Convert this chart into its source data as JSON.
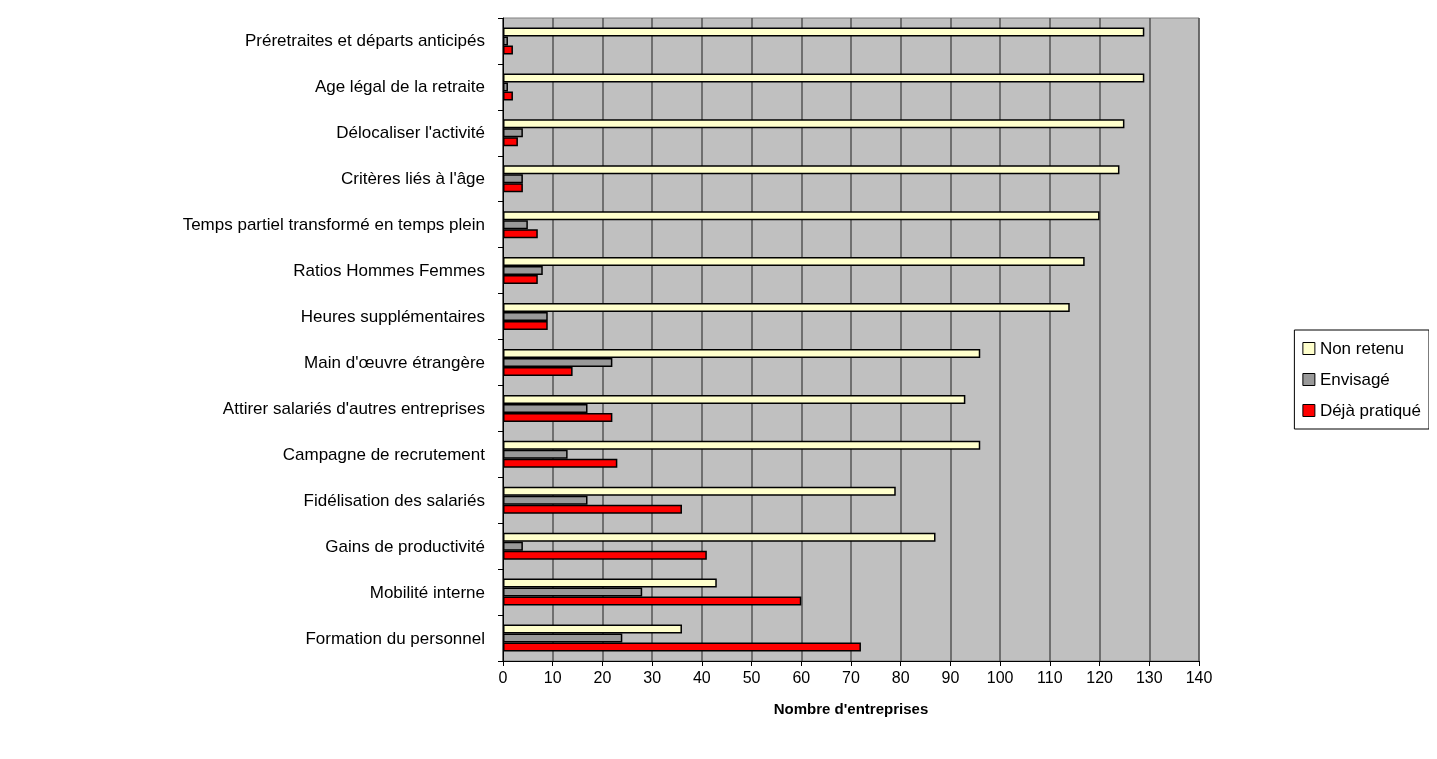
{
  "chart_data": {
    "type": "bar",
    "orientation": "horizontal",
    "xlabel": "Nombre d'entreprises",
    "categories": [
      "Préretraites et départs anticipés",
      "Age légal de la retraite",
      "Délocaliser l'activité",
      "Critères liés à l'âge",
      "Temps partiel transformé en temps plein",
      "Ratios Hommes Femmes",
      "Heures supplémentaires",
      "Main d'œuvre étrangère",
      "Attirer salariés d'autres entreprises",
      "Campagne de recrutement",
      "Fidélisation des salariés",
      "Gains de productivité",
      "Mobilité interne",
      "Formation du personnel"
    ],
    "series": [
      {
        "name": "Non retenu",
        "color": "#ffffcc",
        "values": [
          129,
          129,
          125,
          124,
          120,
          117,
          114,
          96,
          93,
          96,
          79,
          87,
          43,
          36
        ]
      },
      {
        "name": "Envisagé",
        "color": "#999999",
        "values": [
          1,
          1,
          4,
          4,
          5,
          8,
          9,
          22,
          17,
          13,
          17,
          4,
          28,
          24
        ]
      },
      {
        "name": "Déjà pratiqué",
        "color": "#ff0000",
        "values": [
          2,
          2,
          3,
          4,
          7,
          7,
          9,
          14,
          22,
          23,
          36,
          41,
          60,
          72
        ]
      }
    ],
    "xlim": [
      0,
      140
    ],
    "xticks": [
      0,
      10,
      20,
      30,
      40,
      50,
      60,
      70,
      80,
      90,
      100,
      110,
      120,
      130,
      140
    ],
    "grid": "x",
    "legend": "right"
  }
}
